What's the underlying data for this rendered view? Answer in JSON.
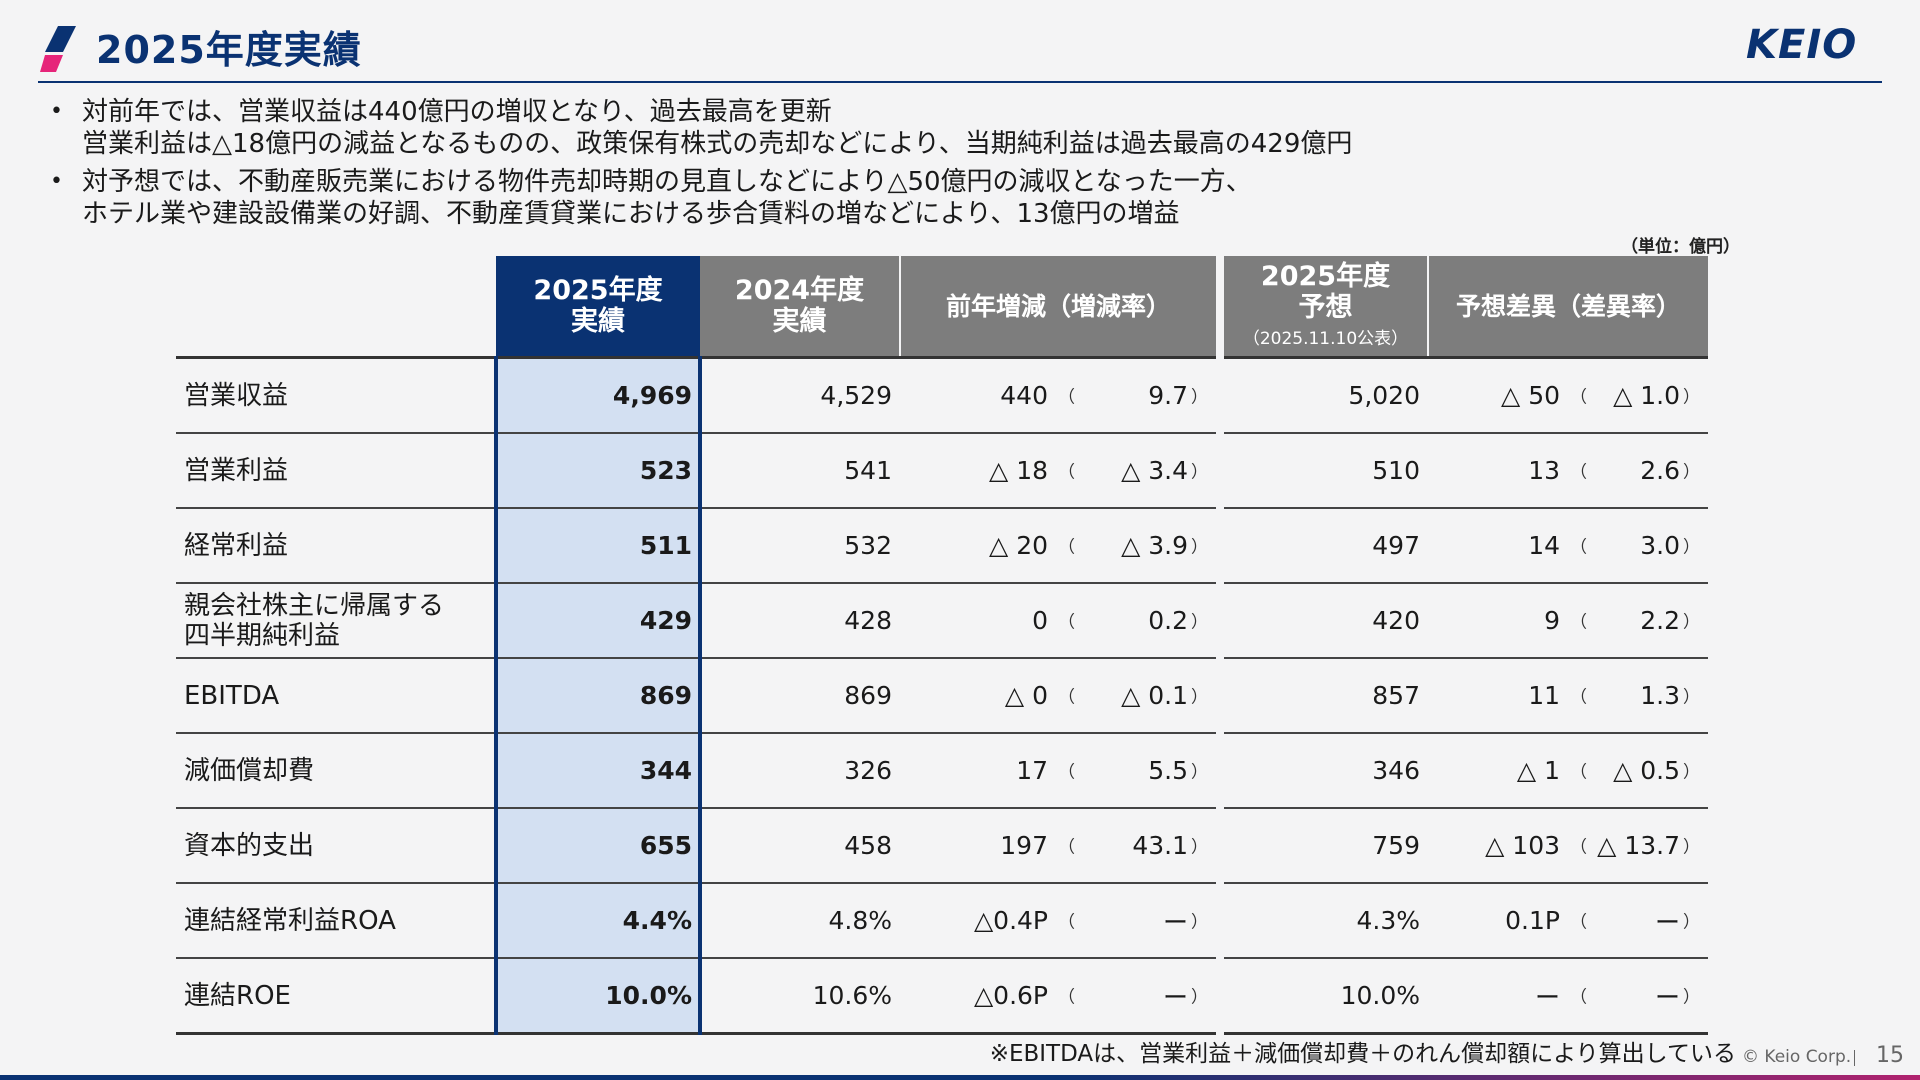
{
  "header": {
    "title": "2025年度実績",
    "brand": "KEIO",
    "colors": {
      "brand_navy": "#0a3272",
      "brand_pink": "#e6257a",
      "header_gray": "#7d7d7d",
      "highlight_bg": "#d3e0f2"
    }
  },
  "bullets": [
    {
      "lines": [
        "対前年では、営業収益は440億円の増収となり、過去最高を更新",
        "営業利益は△18億円の減益となるものの、政策保有株式の売却などにより、当期純利益は過去最高の429億円"
      ]
    },
    {
      "lines": [
        "対予想では、不動産販売業における物件売却時期の見直しなどにより△50億円の減収となった一方、",
        "ホテル業や建設設備業の好調、不動産賃貸業における歩合賃料の増などにより、13億円の増益"
      ]
    }
  ],
  "unit_label": "（単位：億円）",
  "table": {
    "headers": {
      "current_line1": "2025年度",
      "current_line2": "実績",
      "prev_line1": "2024年度",
      "prev_line2": "実績",
      "yoy": "前年増減（増減率）",
      "forecast_line1": "2025年度",
      "forecast_line2": "予想",
      "forecast_note": "（2025.11.10公表）",
      "variance": "予想差異（差異率）"
    },
    "rows": [
      {
        "label1": "営業収益",
        "label2": "",
        "current": "4,969",
        "prev": "4,529",
        "yoy": "440",
        "yoy_rate": "9.7",
        "forecast": "5,020",
        "var": "△ 50",
        "var_rate": "△ 1.0"
      },
      {
        "label1": "営業利益",
        "label2": "",
        "current": "523",
        "prev": "541",
        "yoy": "△ 18",
        "yoy_rate": "△ 3.4",
        "forecast": "510",
        "var": "13",
        "var_rate": "2.6"
      },
      {
        "label1": "経常利益",
        "label2": "",
        "current": "511",
        "prev": "532",
        "yoy": "△ 20",
        "yoy_rate": "△ 3.9",
        "forecast": "497",
        "var": "14",
        "var_rate": "3.0"
      },
      {
        "label1": "親会社株主に帰属する",
        "label2": "四半期純利益",
        "current": "429",
        "prev": "428",
        "yoy": "0",
        "yoy_rate": "0.2",
        "forecast": "420",
        "var": "9",
        "var_rate": "2.2"
      },
      {
        "label1": "EBITDA",
        "label2": "",
        "current": "869",
        "prev": "869",
        "yoy": "△ 0",
        "yoy_rate": "△ 0.1",
        "forecast": "857",
        "var": "11",
        "var_rate": "1.3"
      },
      {
        "label1": "減価償却費",
        "label2": "",
        "current": "344",
        "prev": "326",
        "yoy": "17",
        "yoy_rate": "5.5",
        "forecast": "346",
        "var": "△ 1",
        "var_rate": "△ 0.5"
      },
      {
        "label1": "資本的支出",
        "label2": "",
        "current": "655",
        "prev": "458",
        "yoy": "197",
        "yoy_rate": "43.1",
        "forecast": "759",
        "var": "△ 103",
        "var_rate": "△ 13.7"
      },
      {
        "label1": "連結経常利益ROA",
        "label2": "",
        "current": "4.4%",
        "prev": "4.8%",
        "yoy": "△0.4P",
        "yoy_rate": "ー",
        "forecast": "4.3%",
        "var": "0.1P",
        "var_rate": "ー"
      },
      {
        "label1": "連結ROE",
        "label2": "",
        "current": "10.0%",
        "prev": "10.6%",
        "yoy": "△0.6P",
        "yoy_rate": "ー",
        "forecast": "10.0%",
        "var": "ー",
        "var_rate": "ー"
      }
    ],
    "paren_open": "（",
    "paren_close": "）"
  },
  "footnote": "※EBITDAは、営業利益＋減価償却費＋のれん償却額により算出している",
  "footer": {
    "copyright": "© Keio Corp.",
    "page": "15"
  }
}
